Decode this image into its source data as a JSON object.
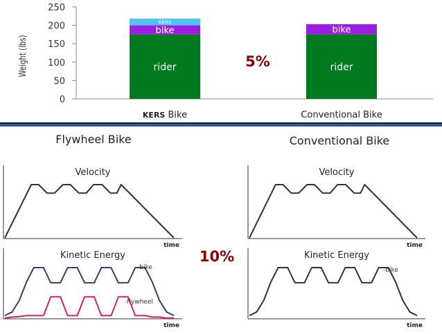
{
  "chart_data": [
    {
      "type": "bar",
      "stacked": true,
      "ylabel": "Weight (lbs)",
      "ylim": [
        0,
        250
      ],
      "yticks": [
        0,
        50,
        100,
        150,
        200,
        250
      ],
      "categories": [
        "KERS Bike",
        "Conventional Bike"
      ],
      "category_labels": [
        {
          "strong": "KERS",
          "rest": " Bike"
        },
        {
          "strong": "",
          "rest": "Conventional Bike"
        }
      ],
      "series": [
        {
          "name": "rider",
          "values": [
            175,
            175
          ],
          "color": "#007a1f"
        },
        {
          "name": "bike",
          "values": [
            25,
            28
          ],
          "color": "#9b1fe0"
        },
        {
          "name": "KERS",
          "values": [
            18,
            0
          ],
          "color": "#4fc3f7"
        }
      ],
      "annotation": "5%",
      "annotation_color": "#8b0000",
      "grid": false
    },
    {
      "type": "line",
      "panel_title": "Flywheel Bike",
      "title": "Velocity",
      "xlabel": "time",
      "x": [
        0,
        12.5,
        16,
        20,
        23.5,
        27.5,
        31,
        35,
        38.5,
        42,
        46,
        50,
        53,
        55,
        80
      ],
      "series": [
        {
          "values": [
            0,
            1,
            1,
            0.84,
            0.84,
            1,
            1,
            0.84,
            0.84,
            1,
            1,
            0.84,
            0.84,
            1,
            0
          ],
          "color": "#333333"
        }
      ]
    },
    {
      "type": "line",
      "title": "Kinetic Energy",
      "xlabel": "time",
      "series": [
        {
          "name": "bike",
          "values": [
            0.05,
            0.12,
            0.35,
            0.72,
            1,
            1,
            0.7,
            0.7,
            1,
            1,
            0.7,
            0.7,
            1,
            1,
            0.7,
            0.7,
            1,
            1,
            0.72,
            0.35,
            0.12,
            0.05
          ],
          "color": "#3d3a6e"
        },
        {
          "name": "flywheel",
          "values": [
            0,
            0.02,
            0.03,
            0.05,
            0.05,
            0.05,
            0.42,
            0.42,
            0.05,
            0.05,
            0.42,
            0.42,
            0.05,
            0.05,
            0.42,
            0.42,
            0.05,
            0.05,
            0.02,
            0.02,
            0,
            0
          ],
          "color": "#d0206e"
        }
      ]
    },
    {
      "type": "line",
      "panel_title": "Conventional Bike",
      "title": "Velocity",
      "xlabel": "time",
      "series": [
        {
          "values": [
            0,
            1,
            1,
            0.84,
            0.84,
            1,
            1,
            0.84,
            0.84,
            1,
            1,
            0.84,
            0.84,
            1,
            0
          ],
          "color": "#333333"
        }
      ]
    },
    {
      "type": "line",
      "title": "Kinetic Energy",
      "xlabel": "time",
      "series": [
        {
          "name": "bike",
          "values": [
            0.05,
            0.12,
            0.35,
            0.72,
            1,
            1,
            0.7,
            0.7,
            1,
            1,
            0.7,
            0.7,
            1,
            1,
            0.7,
            0.7,
            1,
            1,
            0.72,
            0.35,
            0.12,
            0.05
          ],
          "color": "#333333"
        }
      ]
    }
  ],
  "middle_annotation": "10%",
  "bike_legend": "-bike",
  "flywheel_legend": "-flywheel",
  "bike_legend_right": "-bike"
}
